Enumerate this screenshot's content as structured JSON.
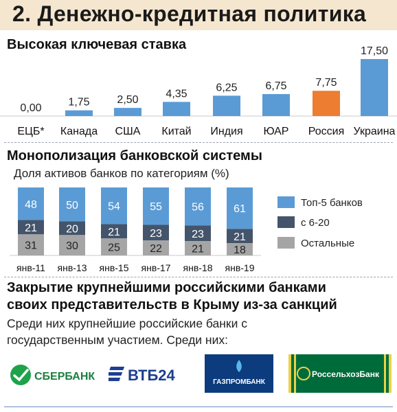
{
  "header": {
    "title": "2. Денежно-кредитная политика"
  },
  "rates_section": {
    "title": "Высокая ключевая ставка"
  },
  "banking_section": {
    "title": "Монополизация банковской системы",
    "subtitle": "Доля активов банков по категориям (%)"
  },
  "crimea_section": {
    "title_line1": "Закрытие крупнейшими российскими банками",
    "title_line2": "своих представительств в Крыму из-за санкций",
    "text_line1": "Среди них крупнейшие российские банки с",
    "text_line2": "государственным участием. Среди них:"
  },
  "logos": {
    "sberbank": "СБЕРБАНК",
    "vtb": "ВТБ24",
    "gazprombank": "ГАЗПРОМБАНК",
    "rosselkhozbank": "РоссельхозБанк"
  },
  "colors": {
    "bar_default": "#5b9bd5",
    "bar_highlight": "#ed7d31",
    "top5": "#5b9bd5",
    "mid": "#44546a",
    "rest": "#a5a5a5",
    "header_bg": "#f5e6cf"
  },
  "chart_data": [
    {
      "type": "bar",
      "title": "Высокая ключевая ставка",
      "categories": [
        "ЕЦБ*",
        "Канада",
        "США",
        "Китай",
        "Индия",
        "ЮАР",
        "Россия",
        "Украина"
      ],
      "values": [
        0.0,
        1.75,
        2.5,
        4.35,
        6.25,
        6.75,
        7.75,
        17.5
      ],
      "value_labels": [
        "0,00",
        "1,75",
        "2,50",
        "4,35",
        "6,25",
        "6,75",
        "7,75",
        "17,50"
      ],
      "highlight_category": "Россия",
      "ylim": [
        0,
        17.5
      ],
      "grid": false,
      "legend": "none"
    },
    {
      "type": "bar",
      "stacked": true,
      "title": "Доля активов банков по категориям (%)",
      "categories": [
        "янв-11",
        "янв-13",
        "янв-15",
        "янв-17",
        "янв-18",
        "янв-19"
      ],
      "series": [
        {
          "name": "Топ-5 банков",
          "values": [
            48,
            50,
            54,
            55,
            56,
            61
          ]
        },
        {
          "name": "с 6-20",
          "values": [
            21,
            20,
            21,
            23,
            23,
            21
          ]
        },
        {
          "name": "Остальные",
          "values": [
            31,
            30,
            25,
            22,
            21,
            18
          ]
        }
      ],
      "ylim": [
        0,
        100
      ],
      "grid": false,
      "legend": "right"
    }
  ]
}
